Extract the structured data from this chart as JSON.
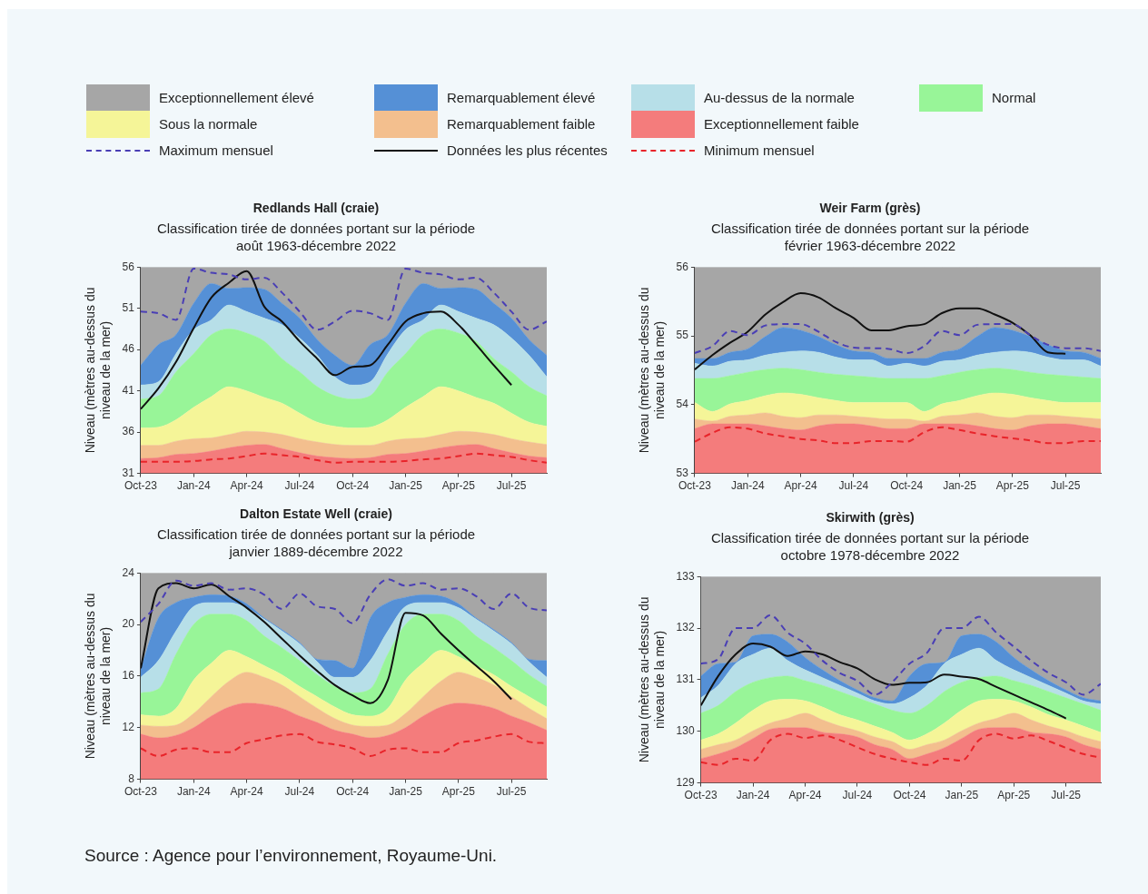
{
  "chart_data": [
    {
      "type": "area",
      "title": "Redlands Hall (craie)",
      "subtitle": "Classification tirée de données portant sur la période août 1963-décembre 2022",
      "ylabel": "Niveau (mètres au-dessus du niveau de la mer)",
      "legend": "top",
      "grid": false,
      "x": [
        "2023-10",
        "2023-11",
        "2023-12",
        "2024-01",
        "2024-02",
        "2024-03",
        "2024-04",
        "2024-05",
        "2024-06",
        "2024-07",
        "2024-08",
        "2024-09",
        "2024-10",
        "2024-11",
        "2024-12",
        "2025-01",
        "2025-02",
        "2025-03",
        "2025-04",
        "2025-05",
        "2025-06",
        "2025-07",
        "2025-08",
        "2025-09"
      ],
      "xlim": [
        "2023-10",
        "2025-09"
      ],
      "xticks": [
        {
          "value": "2023-10",
          "label": "Oct-23"
        },
        {
          "value": "2024-01",
          "label": "Jan-24"
        },
        {
          "value": "2024-04",
          "label": "Apr-24"
        },
        {
          "value": "2024-07",
          "label": "Jul-24"
        },
        {
          "value": "2024-10",
          "label": "Oct-24"
        },
        {
          "value": "2025-01",
          "label": "Jan-25"
        },
        {
          "value": "2025-04",
          "label": "Apr-25"
        },
        {
          "value": "2025-07",
          "label": "Jul-25"
        }
      ],
      "ylim": [
        31,
        56
      ],
      "yticks": [
        31,
        36,
        41,
        46,
        51,
        56
      ],
      "annotations": [
        "Source : Agence pour l’environnement, Royaume-Uni."
      ],
      "series": [
        {
          "name": "Exceptionnellement faible",
          "type": "area",
          "color": "#f47c7c",
          "values": [
            32.8,
            32.9,
            33.3,
            33.4,
            33.7,
            34.1,
            34.4,
            34.5,
            34.0,
            33.5,
            33.1,
            32.9,
            32.8,
            32.9,
            33.3,
            33.4,
            33.7,
            34.1,
            34.4,
            34.5,
            34.0,
            33.5,
            33.1,
            32.9
          ]
        },
        {
          "name": "Remarquablement faible",
          "type": "area",
          "color": "#f3bf8e",
          "values": [
            34.4,
            34.4,
            34.9,
            35.2,
            35.3,
            35.7,
            36.1,
            36.0,
            35.7,
            35.2,
            34.8,
            34.5,
            34.4,
            34.4,
            34.9,
            35.2,
            35.3,
            35.7,
            36.1,
            36.0,
            35.7,
            35.2,
            34.8,
            34.5
          ]
        },
        {
          "name": "Sous la normale",
          "type": "area",
          "color": "#f5f598",
          "values": [
            36.5,
            36.6,
            37.5,
            39.0,
            40.3,
            41.5,
            41.0,
            40.2,
            39.5,
            38.3,
            37.2,
            36.7,
            36.5,
            36.6,
            37.5,
            39.0,
            40.3,
            41.5,
            41.0,
            40.2,
            39.5,
            38.3,
            37.2,
            36.7
          ]
        },
        {
          "name": "Normal",
          "type": "area",
          "color": "#98f598",
          "values": [
            40.0,
            40.4,
            43.3,
            45.5,
            47.8,
            48.5,
            48.0,
            47.0,
            44.9,
            43.3,
            41.5,
            40.4,
            40.0,
            40.4,
            43.3,
            45.5,
            47.8,
            48.5,
            48.0,
            47.0,
            44.9,
            43.3,
            41.5,
            40.4
          ]
        },
        {
          "name": "Au-dessus de la normale",
          "type": "area",
          "color": "#b7dfe8",
          "values": [
            41.7,
            42.1,
            45.5,
            48.4,
            49.6,
            51.4,
            50.6,
            49.8,
            49.0,
            47.4,
            45.3,
            42.7,
            41.7,
            42.1,
            45.5,
            48.4,
            49.6,
            51.4,
            50.6,
            49.8,
            49.0,
            47.4,
            45.3,
            42.7
          ]
        },
        {
          "name": "Remarquablement élevé",
          "type": "area",
          "color": "#5590d6",
          "values": [
            44.1,
            46.6,
            47.8,
            51.6,
            54.0,
            53.4,
            53.5,
            53.3,
            51.6,
            49.8,
            47.2,
            45.3,
            44.1,
            46.6,
            47.8,
            51.6,
            54.0,
            53.4,
            53.5,
            53.3,
            51.6,
            49.8,
            47.2,
            45.3
          ]
        },
        {
          "name": "Exceptionnellement élevé",
          "type": "area",
          "color": "#a6a6a6",
          "values": [
            56,
            56,
            56,
            56,
            56,
            56,
            56,
            56,
            56,
            56,
            56,
            56,
            56,
            56,
            56,
            56,
            56,
            56,
            56,
            56,
            56,
            56,
            56,
            56
          ]
        },
        {
          "name": "Maximum mensuel",
          "type": "line",
          "line_style": "dashed",
          "color": "#4a3fb5",
          "values": [
            50.6,
            50.4,
            49.6,
            55.8,
            55.3,
            55.1,
            54.5,
            54.7,
            52.9,
            50.6,
            48.4,
            49.4,
            50.7,
            50.4,
            49.6,
            55.8,
            55.3,
            55.1,
            54.5,
            54.7,
            52.9,
            50.6,
            48.4,
            49.4
          ]
        },
        {
          "name": "Données les plus récentes",
          "type": "line",
          "line_style": "solid",
          "color": "#111111",
          "values": [
            38.8,
            41.3,
            44.5,
            48.6,
            52.3,
            54.1,
            55.5,
            51.2,
            49.4,
            47.0,
            44.9,
            42.9,
            43.9,
            44.1,
            46.6,
            49.4,
            50.4,
            50.6,
            49.0,
            46.6,
            44.1,
            41.7,
            null,
            null
          ]
        },
        {
          "name": "Minimum mensuel",
          "type": "line",
          "line_style": "dashed",
          "color": "#e8242a",
          "values": [
            32.4,
            32.4,
            32.4,
            32.5,
            32.7,
            32.8,
            33.1,
            33.4,
            33.2,
            33.0,
            32.6,
            32.3,
            32.4,
            32.4,
            32.4,
            32.5,
            32.7,
            32.8,
            33.1,
            33.4,
            33.2,
            33.0,
            32.6,
            32.3
          ]
        }
      ]
    },
    {
      "type": "area",
      "title": "Weir Farm (grès)",
      "subtitle": "Classification tirée de données portant sur la période février 1963-décembre 2022",
      "ylabel": "Niveau (mètres au-dessus du niveau de la mer)",
      "grid": false,
      "x": [
        "2023-10",
        "2023-11",
        "2023-12",
        "2024-01",
        "2024-02",
        "2024-03",
        "2024-04",
        "2024-05",
        "2024-06",
        "2024-07",
        "2024-08",
        "2024-09",
        "2024-10",
        "2024-11",
        "2024-12",
        "2025-01",
        "2025-02",
        "2025-03",
        "2025-04",
        "2025-05",
        "2025-06",
        "2025-07",
        "2025-08",
        "2025-09"
      ],
      "xlim": [
        "2023-10",
        "2025-09"
      ],
      "xticks": [
        {
          "value": "2023-10",
          "label": "Oct-23"
        },
        {
          "value": "2024-01",
          "label": "Jan-24"
        },
        {
          "value": "2024-04",
          "label": "Apr-24"
        },
        {
          "value": "2024-07",
          "label": "Jul-24"
        },
        {
          "value": "2024-10",
          "label": "Oct-24"
        },
        {
          "value": "2025-01",
          "label": "Jan-25"
        },
        {
          "value": "2025-04",
          "label": "Apr-25"
        },
        {
          "value": "2025-07",
          "label": "Jul-25"
        }
      ],
      "ylim": [
        53,
        56
      ],
      "yticks": [
        53,
        54,
        55,
        56
      ],
      "series": [
        {
          "type": "area",
          "color": "#f47c7c",
          "values": [
            53.65,
            53.72,
            53.72,
            53.72,
            53.69,
            53.65,
            53.63,
            53.69,
            53.72,
            53.72,
            53.69,
            53.65,
            53.65,
            53.72,
            53.72,
            53.72,
            53.69,
            53.65,
            53.63,
            53.69,
            53.72,
            53.72,
            53.69,
            53.65
          ]
        },
        {
          "type": "area",
          "color": "#f3bf8e",
          "values": [
            53.79,
            53.76,
            53.83,
            53.85,
            53.88,
            53.83,
            53.81,
            53.85,
            53.85,
            53.83,
            53.81,
            53.79,
            53.79,
            53.76,
            53.83,
            53.85,
            53.88,
            53.83,
            53.81,
            53.85,
            53.85,
            53.83,
            53.81,
            53.79
          ]
        },
        {
          "type": "area",
          "color": "#f5f598",
          "values": [
            54.03,
            53.9,
            54.01,
            54.06,
            54.13,
            54.17,
            54.15,
            54.1,
            54.06,
            54.03,
            54.03,
            54.03,
            54.03,
            53.9,
            54.01,
            54.06,
            54.13,
            54.17,
            54.15,
            54.1,
            54.06,
            54.03,
            54.03,
            54.03
          ]
        },
        {
          "type": "area",
          "color": "#98f598",
          "values": [
            54.38,
            54.38,
            54.42,
            54.47,
            54.51,
            54.53,
            54.51,
            54.47,
            54.44,
            54.42,
            54.4,
            54.38,
            54.38,
            54.38,
            54.42,
            54.47,
            54.51,
            54.53,
            54.51,
            54.47,
            54.44,
            54.42,
            54.4,
            54.38
          ]
        },
        {
          "type": "area",
          "color": "#b7dfe8",
          "values": [
            54.6,
            54.56,
            54.63,
            54.65,
            54.72,
            54.76,
            54.78,
            54.76,
            54.69,
            54.65,
            54.65,
            54.56,
            54.6,
            54.56,
            54.63,
            54.65,
            54.72,
            54.76,
            54.78,
            54.76,
            54.69,
            54.65,
            54.65,
            54.56
          ]
        },
        {
          "type": "area",
          "color": "#5590d6",
          "values": [
            54.67,
            54.67,
            54.76,
            54.81,
            54.99,
            55.12,
            55.08,
            54.99,
            54.87,
            54.78,
            54.76,
            54.67,
            54.67,
            54.67,
            54.76,
            54.81,
            54.99,
            55.12,
            55.08,
            54.99,
            54.87,
            54.78,
            54.76,
            54.67
          ]
        },
        {
          "type": "area",
          "color": "#a6a6a6",
          "values": [
            56,
            56,
            56,
            56,
            56,
            56,
            56,
            56,
            56,
            56,
            56,
            56,
            56,
            56,
            56,
            56,
            56,
            56,
            56,
            56,
            56,
            56,
            56,
            56
          ]
        },
        {
          "type": "line",
          "line_style": "dashed",
          "color": "#4a3fb5",
          "values": [
            54.75,
            54.85,
            55.07,
            55.01,
            55.15,
            55.17,
            55.17,
            55.06,
            54.91,
            54.83,
            54.82,
            54.81,
            54.75,
            54.85,
            55.07,
            55.01,
            55.16,
            55.17,
            55.17,
            55.01,
            54.87,
            54.82,
            54.82,
            54.78
          ]
        },
        {
          "type": "line",
          "line_style": "solid",
          "color": "#111111",
          "values": [
            54.51,
            54.72,
            54.9,
            55.06,
            55.31,
            55.49,
            55.62,
            55.56,
            55.4,
            55.26,
            55.08,
            55.08,
            55.14,
            55.17,
            55.33,
            55.4,
            55.4,
            55.31,
            55.19,
            55.01,
            54.76,
            54.74,
            null,
            null
          ]
        },
        {
          "type": "line",
          "line_style": "dashed",
          "color": "#e8242a",
          "values": [
            53.46,
            53.59,
            53.67,
            53.65,
            53.58,
            53.54,
            53.5,
            53.48,
            53.44,
            53.44,
            53.47,
            53.47,
            53.46,
            53.6,
            53.67,
            53.63,
            53.58,
            53.54,
            53.51,
            53.48,
            53.44,
            53.44,
            53.47,
            53.47
          ]
        }
      ]
    },
    {
      "type": "area",
      "title": "Dalton Estate Well (craie)",
      "subtitle": "Classification tirée de données portant sur la période janvier 1889-décembre 2022",
      "ylabel": "Niveau (mètres au-dessus du niveau de la mer)",
      "grid": false,
      "x": [
        "2023-10",
        "2023-11",
        "2023-12",
        "2024-01",
        "2024-02",
        "2024-03",
        "2024-04",
        "2024-05",
        "2024-06",
        "2024-07",
        "2024-08",
        "2024-09",
        "2024-10",
        "2024-11",
        "2024-12",
        "2025-01",
        "2025-02",
        "2025-03",
        "2025-04",
        "2025-05",
        "2025-06",
        "2025-07",
        "2025-08",
        "2025-09"
      ],
      "xlim": [
        "2023-10",
        "2025-09"
      ],
      "xticks": [
        {
          "value": "2023-10",
          "label": "Oct-23"
        },
        {
          "value": "2024-01",
          "label": "Jan-24"
        },
        {
          "value": "2024-04",
          "label": "Apr-24"
        },
        {
          "value": "2024-07",
          "label": "Jul-24"
        },
        {
          "value": "2024-10",
          "label": "Oct-24"
        },
        {
          "value": "2025-01",
          "label": "Jan-25"
        },
        {
          "value": "2025-04",
          "label": "Apr-25"
        },
        {
          "value": "2025-07",
          "label": "Jul-25"
        }
      ],
      "ylim": [
        8,
        24
      ],
      "yticks": [
        8,
        12,
        16,
        20,
        24
      ],
      "series": [
        {
          "type": "area",
          "color": "#f47c7c",
          "values": [
            11.5,
            11.2,
            11.4,
            12.0,
            12.9,
            13.6,
            13.9,
            13.8,
            13.5,
            12.9,
            12.4,
            11.8,
            11.5,
            11.2,
            11.4,
            12.0,
            12.9,
            13.6,
            13.9,
            13.8,
            13.5,
            12.9,
            12.4,
            11.8
          ]
        },
        {
          "type": "area",
          "color": "#f3bf8e",
          "values": [
            12.2,
            12.1,
            12.2,
            13.1,
            14.4,
            15.6,
            16.3,
            15.9,
            15.3,
            14.4,
            13.5,
            12.7,
            12.2,
            12.1,
            12.2,
            13.1,
            14.4,
            15.6,
            16.3,
            15.9,
            15.3,
            14.4,
            13.5,
            12.7
          ]
        },
        {
          "type": "area",
          "color": "#f5f598",
          "values": [
            13.0,
            12.9,
            13.5,
            15.7,
            17.0,
            18.0,
            17.5,
            16.8,
            16.1,
            15.2,
            14.4,
            13.6,
            13.0,
            12.9,
            13.5,
            15.7,
            17.0,
            18.0,
            17.5,
            16.8,
            16.1,
            15.2,
            14.4,
            13.6
          ]
        },
        {
          "type": "area",
          "color": "#98f598",
          "values": [
            14.7,
            15.0,
            17.7,
            20.0,
            20.8,
            20.8,
            20.3,
            19.1,
            18.2,
            17.2,
            16.1,
            15.2,
            14.7,
            15.0,
            17.7,
            20.0,
            20.8,
            20.8,
            20.3,
            19.1,
            18.2,
            17.2,
            16.1,
            15.2
          ]
        },
        {
          "type": "area",
          "color": "#b7dfe8",
          "values": [
            15.9,
            17.2,
            19.5,
            21.4,
            21.7,
            21.7,
            21.3,
            20.4,
            19.5,
            18.5,
            17.1,
            15.9,
            15.9,
            17.2,
            19.5,
            21.4,
            21.7,
            21.7,
            21.3,
            20.4,
            19.5,
            18.5,
            17.1,
            15.9
          ]
        },
        {
          "type": "area",
          "color": "#5590d6",
          "values": [
            16.6,
            20.5,
            21.7,
            22.1,
            22.3,
            22.2,
            21.6,
            20.5,
            19.6,
            18.6,
            17.3,
            17.2,
            16.6,
            20.5,
            21.7,
            22.1,
            22.3,
            22.2,
            21.6,
            20.5,
            19.6,
            18.6,
            17.3,
            17.2
          ]
        },
        {
          "type": "area",
          "color": "#a6a6a6",
          "values": [
            24,
            24,
            24,
            24,
            24,
            24,
            24,
            24,
            24,
            24,
            24,
            24,
            24,
            24,
            24,
            24,
            24,
            24,
            24,
            24,
            24,
            24,
            24,
            24
          ]
        },
        {
          "type": "line",
          "line_style": "dashed",
          "color": "#4a3fb5",
          "values": [
            20.2,
            21.6,
            23.4,
            23.0,
            23.2,
            22.7,
            22.8,
            22.3,
            21.2,
            22.4,
            21.4,
            21.2,
            20.1,
            22.3,
            23.5,
            23.0,
            23.2,
            22.7,
            22.8,
            22.2,
            21.2,
            22.4,
            21.3,
            21.1
          ]
        },
        {
          "type": "line",
          "line_style": "solid",
          "color": "#111111",
          "values": [
            16.6,
            22.8,
            23.2,
            22.8,
            23.1,
            22.2,
            21.3,
            20.2,
            18.9,
            17.6,
            16.4,
            15.3,
            14.5,
            13.9,
            15.7,
            20.9,
            20.7,
            19.3,
            18.0,
            16.8,
            15.6,
            14.2,
            null,
            null
          ]
        },
        {
          "type": "line",
          "line_style": "dashed",
          "color": "#e8242a",
          "values": [
            10.4,
            9.8,
            10.3,
            10.4,
            10.1,
            10.1,
            10.8,
            11.1,
            11.4,
            11.5,
            10.9,
            10.7,
            10.4,
            9.8,
            10.3,
            10.4,
            10.1,
            10.1,
            10.8,
            11.0,
            11.3,
            11.5,
            10.9,
            10.8
          ]
        }
      ]
    },
    {
      "type": "area",
      "title": "Skirwith (grès)",
      "subtitle": "Classification tirée de données portant sur la période octobre 1978-décembre 2022",
      "ylabel": "Niveau (mètres au-dessus du niveau de la mer)",
      "grid": false,
      "x": [
        "2023-10",
        "2023-11",
        "2023-12",
        "2024-01",
        "2024-02",
        "2024-03",
        "2024-04",
        "2024-05",
        "2024-06",
        "2024-07",
        "2024-08",
        "2024-09",
        "2024-10",
        "2024-11",
        "2024-12",
        "2025-01",
        "2025-02",
        "2025-03",
        "2025-04",
        "2025-05",
        "2025-06",
        "2025-07",
        "2025-08",
        "2025-09"
      ],
      "xlim": [
        "2023-10",
        "2025-09"
      ],
      "xticks": [
        {
          "value": "2023-10",
          "label": "Oct-23"
        },
        {
          "value": "2024-01",
          "label": "Jan-24"
        },
        {
          "value": "2024-04",
          "label": "Apr-24"
        },
        {
          "value": "2024-07",
          "label": "Jul-24"
        },
        {
          "value": "2024-10",
          "label": "Oct-24"
        },
        {
          "value": "2025-01",
          "label": "Jan-25"
        },
        {
          "value": "2025-04",
          "label": "Apr-25"
        },
        {
          "value": "2025-07",
          "label": "Jul-25"
        }
      ],
      "ylim": [
        129,
        133
      ],
      "yticks": [
        129,
        130,
        131,
        132,
        133
      ],
      "series": [
        {
          "type": "area",
          "color": "#f47c7c",
          "values": [
            129.47,
            129.56,
            129.68,
            129.86,
            130.04,
            130.07,
            130.07,
            129.98,
            129.95,
            129.89,
            129.74,
            129.65,
            129.47,
            129.56,
            129.68,
            129.86,
            130.04,
            130.07,
            130.07,
            129.98,
            129.95,
            129.89,
            129.74,
            129.65
          ]
        },
        {
          "type": "area",
          "color": "#f3bf8e",
          "values": [
            129.65,
            129.74,
            129.83,
            130.01,
            130.16,
            130.25,
            130.35,
            130.22,
            130.1,
            130.01,
            129.89,
            129.8,
            129.65,
            129.74,
            129.83,
            130.01,
            130.16,
            130.25,
            130.35,
            130.22,
            130.1,
            130.01,
            129.89,
            129.8
          ]
        },
        {
          "type": "area",
          "color": "#f5f598",
          "values": [
            129.83,
            129.95,
            130.16,
            130.41,
            130.59,
            130.62,
            130.59,
            130.47,
            130.32,
            130.22,
            130.1,
            129.98,
            129.83,
            129.95,
            130.16,
            130.41,
            130.59,
            130.62,
            130.59,
            130.47,
            130.32,
            130.22,
            130.1,
            129.98
          ]
        },
        {
          "type": "area",
          "color": "#98f598",
          "values": [
            130.35,
            130.5,
            130.77,
            130.95,
            131.04,
            131.07,
            130.98,
            130.89,
            130.77,
            130.65,
            130.53,
            130.41,
            130.35,
            130.5,
            130.77,
            130.95,
            131.04,
            131.07,
            130.98,
            130.89,
            130.77,
            130.65,
            130.53,
            130.41
          ]
        },
        {
          "type": "area",
          "color": "#b7dfe8",
          "values": [
            130.65,
            130.89,
            131.31,
            131.49,
            131.61,
            131.37,
            131.19,
            131.04,
            130.89,
            130.74,
            130.59,
            130.53,
            130.65,
            130.89,
            131.31,
            131.49,
            131.61,
            131.37,
            131.19,
            131.04,
            130.89,
            130.74,
            130.59,
            130.53
          ]
        },
        {
          "type": "area",
          "color": "#5590d6",
          "values": [
            131.07,
            131.31,
            131.34,
            131.85,
            131.88,
            131.73,
            131.43,
            131.19,
            130.98,
            130.8,
            130.65,
            130.59,
            131.07,
            131.31,
            131.34,
            131.85,
            131.88,
            131.73,
            131.43,
            131.19,
            130.98,
            130.8,
            130.65,
            130.59
          ]
        },
        {
          "type": "area",
          "color": "#a6a6a6",
          "values": [
            133,
            133,
            133,
            133,
            133,
            133,
            133,
            133,
            133,
            133,
            133,
            133,
            133,
            133,
            133,
            133,
            133,
            133,
            133,
            133,
            133,
            133,
            133,
            133
          ]
        },
        {
          "type": "line",
          "line_style": "dashed",
          "color": "#4a3fb5",
          "values": [
            131.31,
            131.4,
            132.0,
            132.0,
            132.25,
            131.91,
            131.7,
            131.37,
            131.13,
            130.98,
            130.71,
            130.95,
            131.31,
            131.52,
            132.0,
            132.0,
            132.22,
            131.91,
            131.64,
            131.37,
            131.13,
            130.95,
            130.71,
            130.92
          ]
        },
        {
          "type": "line",
          "line_style": "solid",
          "color": "#111111",
          "values": [
            130.5,
            131.07,
            131.49,
            131.7,
            131.64,
            131.46,
            131.55,
            131.49,
            131.34,
            131.22,
            131.01,
            130.9,
            130.94,
            130.95,
            131.1,
            131.06,
            131.01,
            130.86,
            130.71,
            130.56,
            130.41,
            130.25,
            null,
            null
          ]
        },
        {
          "type": "line",
          "line_style": "dashed",
          "color": "#e8242a",
          "values": [
            129.4,
            129.35,
            129.47,
            129.43,
            129.83,
            129.95,
            129.87,
            129.92,
            129.83,
            129.69,
            129.56,
            129.47,
            129.4,
            129.35,
            129.47,
            129.43,
            129.83,
            129.95,
            129.86,
            129.92,
            129.81,
            129.68,
            129.56,
            129.49
          ]
        }
      ]
    }
  ]
}
